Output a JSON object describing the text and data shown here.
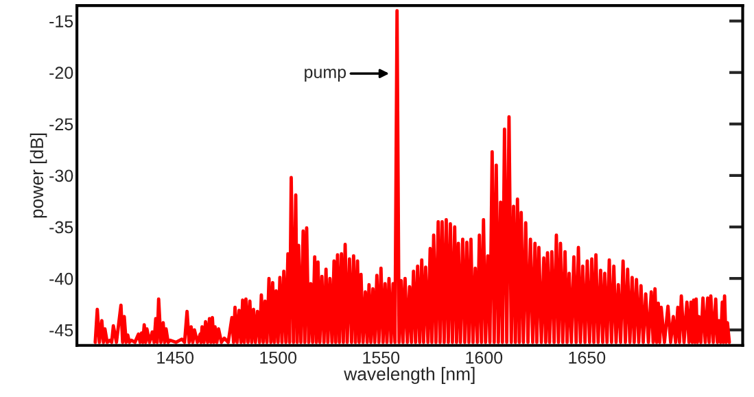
{
  "chart_data": {
    "type": "line",
    "xlabel": "wavelength [nm]",
    "ylabel": "power [dB]",
    "xlim": [
      1402.3,
      1725.7
    ],
    "ylim": [
      -46.5,
      -13.5
    ],
    "xticks": [
      1450,
      1500,
      1550,
      1600,
      1650
    ],
    "yticks": [
      -45,
      -40,
      -35,
      -30,
      -25,
      -20,
      -15
    ],
    "grid": false,
    "marker": "none",
    "line_style": "solid",
    "annotations": [
      "pump"
    ],
    "series": [
      {
        "color": "#ff0000",
        "x": [
          1411.2,
          1412.2,
          1413.2,
          1414.4,
          1415.2,
          1415.9,
          1417.0,
          1418.3,
          1419.2,
          1420.0,
          1421.5,
          1423.7,
          1424.5,
          1425.3,
          1426.2,
          1427.0,
          1427.8,
          1428.7,
          1430.5,
          1432.2,
          1433.0,
          1433.7,
          1434.3,
          1435.0,
          1435.7,
          1436.3,
          1437.6,
          1438.9,
          1439.8,
          1440.6,
          1441.3,
          1442.0,
          1443.1,
          1444.2,
          1444.9,
          1445.6,
          1446.6,
          1447.6,
          1450.5,
          1453.3,
          1454.6,
          1455.8,
          1456.8,
          1457.8,
          1458.6,
          1459.4,
          1460.8,
          1462.2,
          1462.6,
          1463.1,
          1464.0,
          1464.8,
          1465.8,
          1466.7,
          1467.4,
          1468.1,
          1468.8,
          1469.4,
          1470.3,
          1471.1,
          1472.5,
          1473.9,
          1475.8,
          1477.6,
          1478.4,
          1479.1,
          1480.1,
          1481.1,
          1482.0,
          1482.8,
          1483.6,
          1484.4,
          1485.4,
          1486.3,
          1487.2,
          1488.1,
          1489.0,
          1490.0,
          1491.0,
          1491.9,
          1492.8,
          1493.7,
          1494.6,
          1495.6,
          1496.5,
          1497.4,
          1498.2,
          1499.1,
          1500.0,
          1500.9,
          1501.9,
          1502.8,
          1503.8,
          1504.8,
          1505.6,
          1506.4,
          1507.5,
          1508.6,
          1509.3,
          1510.0,
          1511.1,
          1512.2,
          1513.0,
          1513.9,
          1514.9,
          1515.9,
          1516.8,
          1517.8,
          1518.6,
          1519.4,
          1520.3,
          1521.3,
          1522.3,
          1523.3,
          1524.2,
          1525.2,
          1526.2,
          1527.2,
          1528.0,
          1528.9,
          1529.8,
          1530.8,
          1531.7,
          1532.6,
          1533.6,
          1534.7,
          1535.7,
          1536.7,
          1537.6,
          1538.6,
          1539.4,
          1540.3,
          1541.3,
          1542.4,
          1543.3,
          1544.2,
          1545.1,
          1546.1,
          1547.0,
          1548.0,
          1549.0,
          1550.0,
          1551.0,
          1552.0,
          1552.9,
          1553.9,
          1554.9,
          1555.9,
          1556.8,
          1557.8,
          1558.8,
          1559.8,
          1560.7,
          1561.7,
          1562.8,
          1563.9,
          1564.8,
          1565.8,
          1566.8,
          1567.8,
          1568.8,
          1569.8,
          1570.7,
          1571.7,
          1572.8,
          1573.9,
          1574.7,
          1575.6,
          1576.7,
          1577.8,
          1578.7,
          1579.7,
          1580.7,
          1581.7,
          1582.7,
          1583.7,
          1584.7,
          1585.8,
          1586.7,
          1587.6,
          1588.6,
          1589.7,
          1590.7,
          1591.7,
          1592.7,
          1593.7,
          1594.7,
          1595.8,
          1596.8,
          1597.8,
          1598.8,
          1599.8,
          1600.8,
          1601.9,
          1602.9,
          1604.0,
          1605.0,
          1606.0,
          1607.0,
          1608.1,
          1609.0,
          1610.0,
          1611.1,
          1612.2,
          1613.3,
          1614.4,
          1615.3,
          1616.3,
          1617.2,
          1618.1,
          1619.2,
          1620.3,
          1621.4,
          1622.6,
          1623.7,
          1624.8,
          1625.7,
          1626.7,
          1627.9,
          1629.1,
          1630.0,
          1630.9,
          1631.9,
          1633.0,
          1634.1,
          1635.2,
          1636.2,
          1637.2,
          1638.3,
          1639.4,
          1640.4,
          1641.4,
          1642.5,
          1643.7,
          1644.8,
          1645.9,
          1646.9,
          1648.0,
          1649.1,
          1650.2,
          1651.3,
          1652.4,
          1653.4,
          1654.4,
          1655.5,
          1656.7,
          1657.7,
          1658.7,
          1659.8,
          1660.9,
          1662.0,
          1663.1,
          1664.2,
          1665.3,
          1666.4,
          1667.6,
          1668.7,
          1669.8,
          1670.9,
          1672.0,
          1673.0,
          1674.1,
          1675.2,
          1676.3,
          1677.4,
          1678.6,
          1679.9,
          1681.3,
          1682.2,
          1683.1,
          1683.9,
          1684.7,
          1685.4,
          1686.1,
          1687.7,
          1689.4,
          1690.7,
          1692.0,
          1693.1,
          1694.2,
          1695.0,
          1695.9,
          1697.2,
          1698.6,
          1699.6,
          1700.6,
          1701.2,
          1701.9,
          1702.5,
          1703.1,
          1703.7,
          1704.4,
          1705.4,
          1706.4,
          1707.5,
          1708.7,
          1709.4,
          1710.2,
          1711.4,
          1712.6,
          1713.4,
          1714.2,
          1715.0,
          1715.8,
          1716.3,
          1716.9,
          1717.6,
          1718.3,
          1719.2
        ],
        "values": [
          -46.2,
          -43.0,
          -46.2,
          -44.1,
          -46.2,
          -44.9,
          -46.2,
          -46.0,
          -46.2,
          -44.6,
          -46.2,
          -42.6,
          -46.2,
          -43.7,
          -46.2,
          -45.5,
          -46.2,
          -46.0,
          -46.2,
          -45.4,
          -46.2,
          -45.3,
          -46.2,
          -44.5,
          -46.2,
          -44.9,
          -46.2,
          -45.2,
          -46.2,
          -43.9,
          -46.2,
          -42.0,
          -46.2,
          -44.3,
          -46.2,
          -44.9,
          -46.2,
          -46.0,
          -46.2,
          -45.9,
          -46.2,
          -43.2,
          -46.2,
          -44.7,
          -46.2,
          -45.0,
          -46.2,
          -45.4,
          -46.2,
          -44.7,
          -46.2,
          -44.2,
          -46.2,
          -43.9,
          -46.2,
          -43.8,
          -46.2,
          -44.7,
          -46.2,
          -44.9,
          -46.2,
          -45.8,
          -46.2,
          -43.8,
          -46.2,
          -42.8,
          -46.2,
          -43.1,
          -46.2,
          -42.1,
          -46.2,
          -42.0,
          -46.2,
          -42.2,
          -46.2,
          -43.0,
          -46.2,
          -43.2,
          -46.2,
          -41.6,
          -46.2,
          -42.2,
          -46.2,
          -40.0,
          -46.2,
          -40.4,
          -46.2,
          -41.2,
          -46.2,
          -39.9,
          -46.2,
          -39.3,
          -46.2,
          -37.6,
          -46.2,
          -30.2,
          -46.2,
          -31.9,
          -46.2,
          -36.8,
          -46.2,
          -35.4,
          -46.2,
          -35.1,
          -46.2,
          -40.5,
          -46.2,
          -37.9,
          -46.2,
          -38.4,
          -46.2,
          -39.8,
          -46.2,
          -39.1,
          -46.2,
          -40.0,
          -46.2,
          -38.3,
          -46.2,
          -37.7,
          -46.2,
          -37.6,
          -46.2,
          -36.7,
          -46.2,
          -38.1,
          -46.2,
          -37.8,
          -46.2,
          -38.3,
          -46.2,
          -39.6,
          -46.2,
          -41.3,
          -46.2,
          -40.6,
          -46.2,
          -41.0,
          -46.2,
          -39.7,
          -46.2,
          -39.0,
          -46.2,
          -40.5,
          -46.2,
          -40.0,
          -46.2,
          -40.5,
          -46.2,
          -14.0,
          -46.2,
          -40.2,
          -46.2,
          -40.0,
          -46.2,
          -40.8,
          -46.2,
          -39.3,
          -46.2,
          -38.8,
          -46.2,
          -38.2,
          -46.2,
          -38.9,
          -46.2,
          -37.1,
          -46.2,
          -35.8,
          -46.2,
          -34.5,
          -46.2,
          -34.5,
          -46.2,
          -34.3,
          -46.2,
          -34.7,
          -46.2,
          -35.0,
          -46.2,
          -36.6,
          -46.2,
          -36.2,
          -46.2,
          -36.5,
          -46.2,
          -36.2,
          -46.2,
          -39.0,
          -46.2,
          -35.8,
          -46.2,
          -34.3,
          -46.2,
          -37.8,
          -46.2,
          -27.7,
          -46.2,
          -29.0,
          -46.2,
          -32.6,
          -46.2,
          -25.5,
          -46.2,
          -24.3,
          -46.2,
          -33.0,
          -46.2,
          -32.3,
          -46.2,
          -33.6,
          -46.2,
          -34.6,
          -46.2,
          -36.2,
          -46.2,
          -36.6,
          -46.2,
          -37.0,
          -46.2,
          -38.0,
          -46.2,
          -37.5,
          -46.2,
          -37.4,
          -46.2,
          -35.8,
          -46.2,
          -36.6,
          -46.2,
          -37.4,
          -46.2,
          -39.5,
          -46.2,
          -37.9,
          -46.2,
          -37.0,
          -46.2,
          -38.8,
          -46.2,
          -38.3,
          -46.2,
          -38.1,
          -46.2,
          -37.7,
          -46.2,
          -39.2,
          -46.2,
          -39.5,
          -46.2,
          -38.2,
          -46.2,
          -38.8,
          -46.2,
          -40.6,
          -46.2,
          -38.3,
          -46.2,
          -39.1,
          -46.2,
          -39.9,
          -46.2,
          -40.1,
          -46.2,
          -40.7,
          -46.2,
          -41.5,
          -46.2,
          -41.3,
          -46.2,
          -41.0,
          -46.2,
          -42.4,
          -46.2,
          -42.8,
          -46.2,
          -42.7,
          -46.2,
          -43.7,
          -46.2,
          -42.8,
          -46.2,
          -41.7,
          -46.2,
          -42.3,
          -46.2,
          -42.3,
          -46.2,
          -42.1,
          -46.2,
          -42.0,
          -46.2,
          -43.7,
          -46.2,
          -41.9,
          -46.2,
          -41.9,
          -46.2,
          -41.7,
          -46.2,
          -42.0,
          -46.2,
          -44.1,
          -46.2,
          -42.3,
          -46.2,
          -41.7,
          -46.2,
          -44.3,
          -46.2
        ]
      }
    ]
  }
}
